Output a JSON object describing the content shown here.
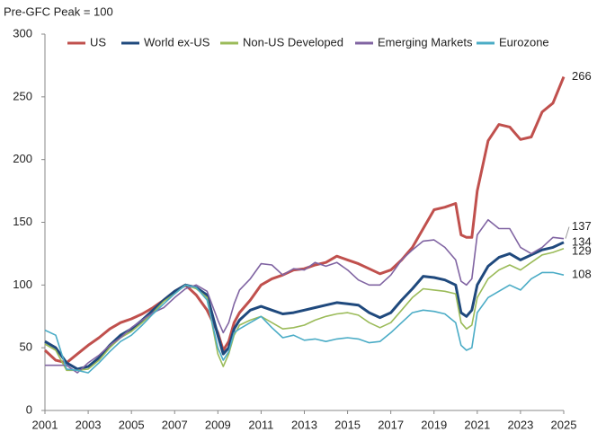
{
  "chart_data": {
    "type": "line",
    "ylabel": "Pre-GFC Peak = 100",
    "x": [
      2001,
      2001.5,
      2002,
      2002.5,
      2003,
      2003.5,
      2004,
      2004.5,
      2005,
      2005.5,
      2006,
      2006.5,
      2007,
      2007.5,
      2008,
      2008.5,
      2009,
      2009.25,
      2009.5,
      2009.75,
      2010,
      2010.5,
      2011,
      2011.5,
      2012,
      2012.5,
      2013,
      2013.5,
      2014,
      2014.5,
      2015,
      2015.5,
      2016,
      2016.5,
      2017,
      2017.5,
      2018,
      2018.5,
      2019,
      2019.5,
      2020,
      2020.25,
      2020.5,
      2020.75,
      2021,
      2021.5,
      2022,
      2022.5,
      2023,
      2023.5,
      2024,
      2024.5,
      2025
    ],
    "series": [
      {
        "name": "US",
        "color": "#c0504d",
        "label_color": "#c0504d",
        "width": 3,
        "values": [
          48,
          40,
          38,
          45,
          52,
          58,
          65,
          70,
          73,
          77,
          82,
          88,
          95,
          100,
          92,
          80,
          62,
          48,
          55,
          70,
          78,
          88,
          100,
          105,
          108,
          112,
          113,
          116,
          118,
          123,
          120,
          117,
          113,
          109,
          112,
          120,
          130,
          145,
          160,
          162,
          165,
          140,
          138,
          138,
          175,
          215,
          228,
          226,
          216,
          218,
          238,
          245,
          266
        ]
      },
      {
        "name": "World ex-US",
        "color": "#1f497d",
        "label_color": "#1f497d",
        "width": 3,
        "values": [
          55,
          50,
          38,
          33,
          35,
          42,
          52,
          60,
          65,
          72,
          80,
          88,
          95,
          100,
          98,
          92,
          60,
          45,
          50,
          65,
          72,
          80,
          83,
          80,
          77,
          78,
          80,
          82,
          84,
          86,
          85,
          84,
          78,
          74,
          78,
          88,
          97,
          107,
          106,
          104,
          100,
          78,
          75,
          80,
          100,
          115,
          122,
          125,
          120,
          124,
          128,
          130,
          134
        ]
      },
      {
        "name": "Non-US Developed",
        "color": "#9bbb59",
        "label_color": "#c9b22a",
        "width": 1.6,
        "values": [
          53,
          48,
          32,
          32,
          33,
          40,
          50,
          58,
          63,
          70,
          78,
          87,
          93,
          100,
          97,
          90,
          45,
          35,
          45,
          60,
          68,
          72,
          75,
          70,
          65,
          66,
          68,
          72,
          75,
          77,
          78,
          76,
          70,
          66,
          70,
          80,
          90,
          97,
          96,
          95,
          93,
          70,
          65,
          68,
          90,
          105,
          112,
          116,
          112,
          118,
          124,
          126,
          129
        ]
      },
      {
        "name": "Emerging Markets",
        "color": "#8064a2",
        "label_color": "#222222",
        "width": 1.6,
        "values": [
          36,
          36,
          36,
          30,
          38,
          44,
          52,
          58,
          66,
          72,
          78,
          82,
          90,
          97,
          100,
          95,
          72,
          62,
          70,
          85,
          96,
          105,
          117,
          116,
          108,
          113,
          112,
          118,
          115,
          118,
          112,
          104,
          100,
          100,
          108,
          120,
          128,
          135,
          136,
          130,
          120,
          103,
          100,
          105,
          140,
          152,
          145,
          145,
          130,
          125,
          130,
          138,
          137
        ]
      },
      {
        "name": "Eurozone",
        "color": "#4bacc6",
        "label_color": "#e0b820",
        "width": 1.6,
        "values": [
          64,
          60,
          33,
          32,
          30,
          38,
          47,
          55,
          60,
          68,
          77,
          85,
          93,
          100,
          98,
          88,
          50,
          40,
          47,
          62,
          65,
          70,
          75,
          66,
          58,
          60,
          56,
          57,
          55,
          57,
          58,
          57,
          54,
          55,
          62,
          70,
          78,
          80,
          79,
          77,
          70,
          52,
          48,
          50,
          78,
          90,
          95,
          100,
          96,
          105,
          110,
          110,
          108
        ]
      }
    ],
    "xlim": [
      2001,
      2025
    ],
    "xticks": [
      2001,
      2003,
      2005,
      2007,
      2009,
      2011,
      2013,
      2015,
      2017,
      2019,
      2021,
      2023,
      2025
    ],
    "ylim": [
      0,
      300
    ],
    "yticks": [
      0,
      50,
      100,
      150,
      200,
      250,
      300
    ],
    "grid": false,
    "legend": "top"
  }
}
